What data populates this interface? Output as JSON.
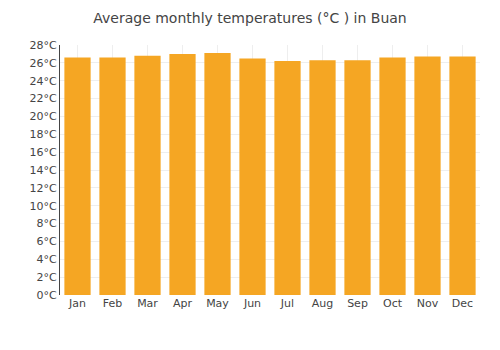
{
  "chart_data": {
    "type": "bar",
    "title": "Average monthly temperatures (°C ) in Buan",
    "categories": [
      "Jan",
      "Feb",
      "Mar",
      "Apr",
      "May",
      "Jun",
      "Jul",
      "Aug",
      "Sep",
      "Oct",
      "Nov",
      "Dec"
    ],
    "values": [
      26.6,
      26.6,
      26.8,
      27.0,
      27.1,
      26.5,
      26.2,
      26.3,
      26.3,
      26.6,
      26.7,
      26.7
    ],
    "color": "#F5A623",
    "ylim": [
      0,
      28
    ],
    "yticks": [
      {
        "value": 0,
        "label": "0°C"
      },
      {
        "value": 2,
        "label": "2°C"
      },
      {
        "value": 4,
        "label": "4°C"
      },
      {
        "value": 6,
        "label": "6°C"
      },
      {
        "value": 8,
        "label": "8°C"
      },
      {
        "value": 10,
        "label": "10°C"
      },
      {
        "value": 12,
        "label": "12°C"
      },
      {
        "value": 14,
        "label": "14°C"
      },
      {
        "value": 16,
        "label": "16°C"
      },
      {
        "value": 18,
        "label": "18°C"
      },
      {
        "value": 20,
        "label": "20°C"
      },
      {
        "value": 22,
        "label": "22°C"
      },
      {
        "value": 24,
        "label": "24°C"
      },
      {
        "value": 26,
        "label": "26°C"
      },
      {
        "value": 28,
        "label": "28°C"
      }
    ],
    "grid": true
  }
}
